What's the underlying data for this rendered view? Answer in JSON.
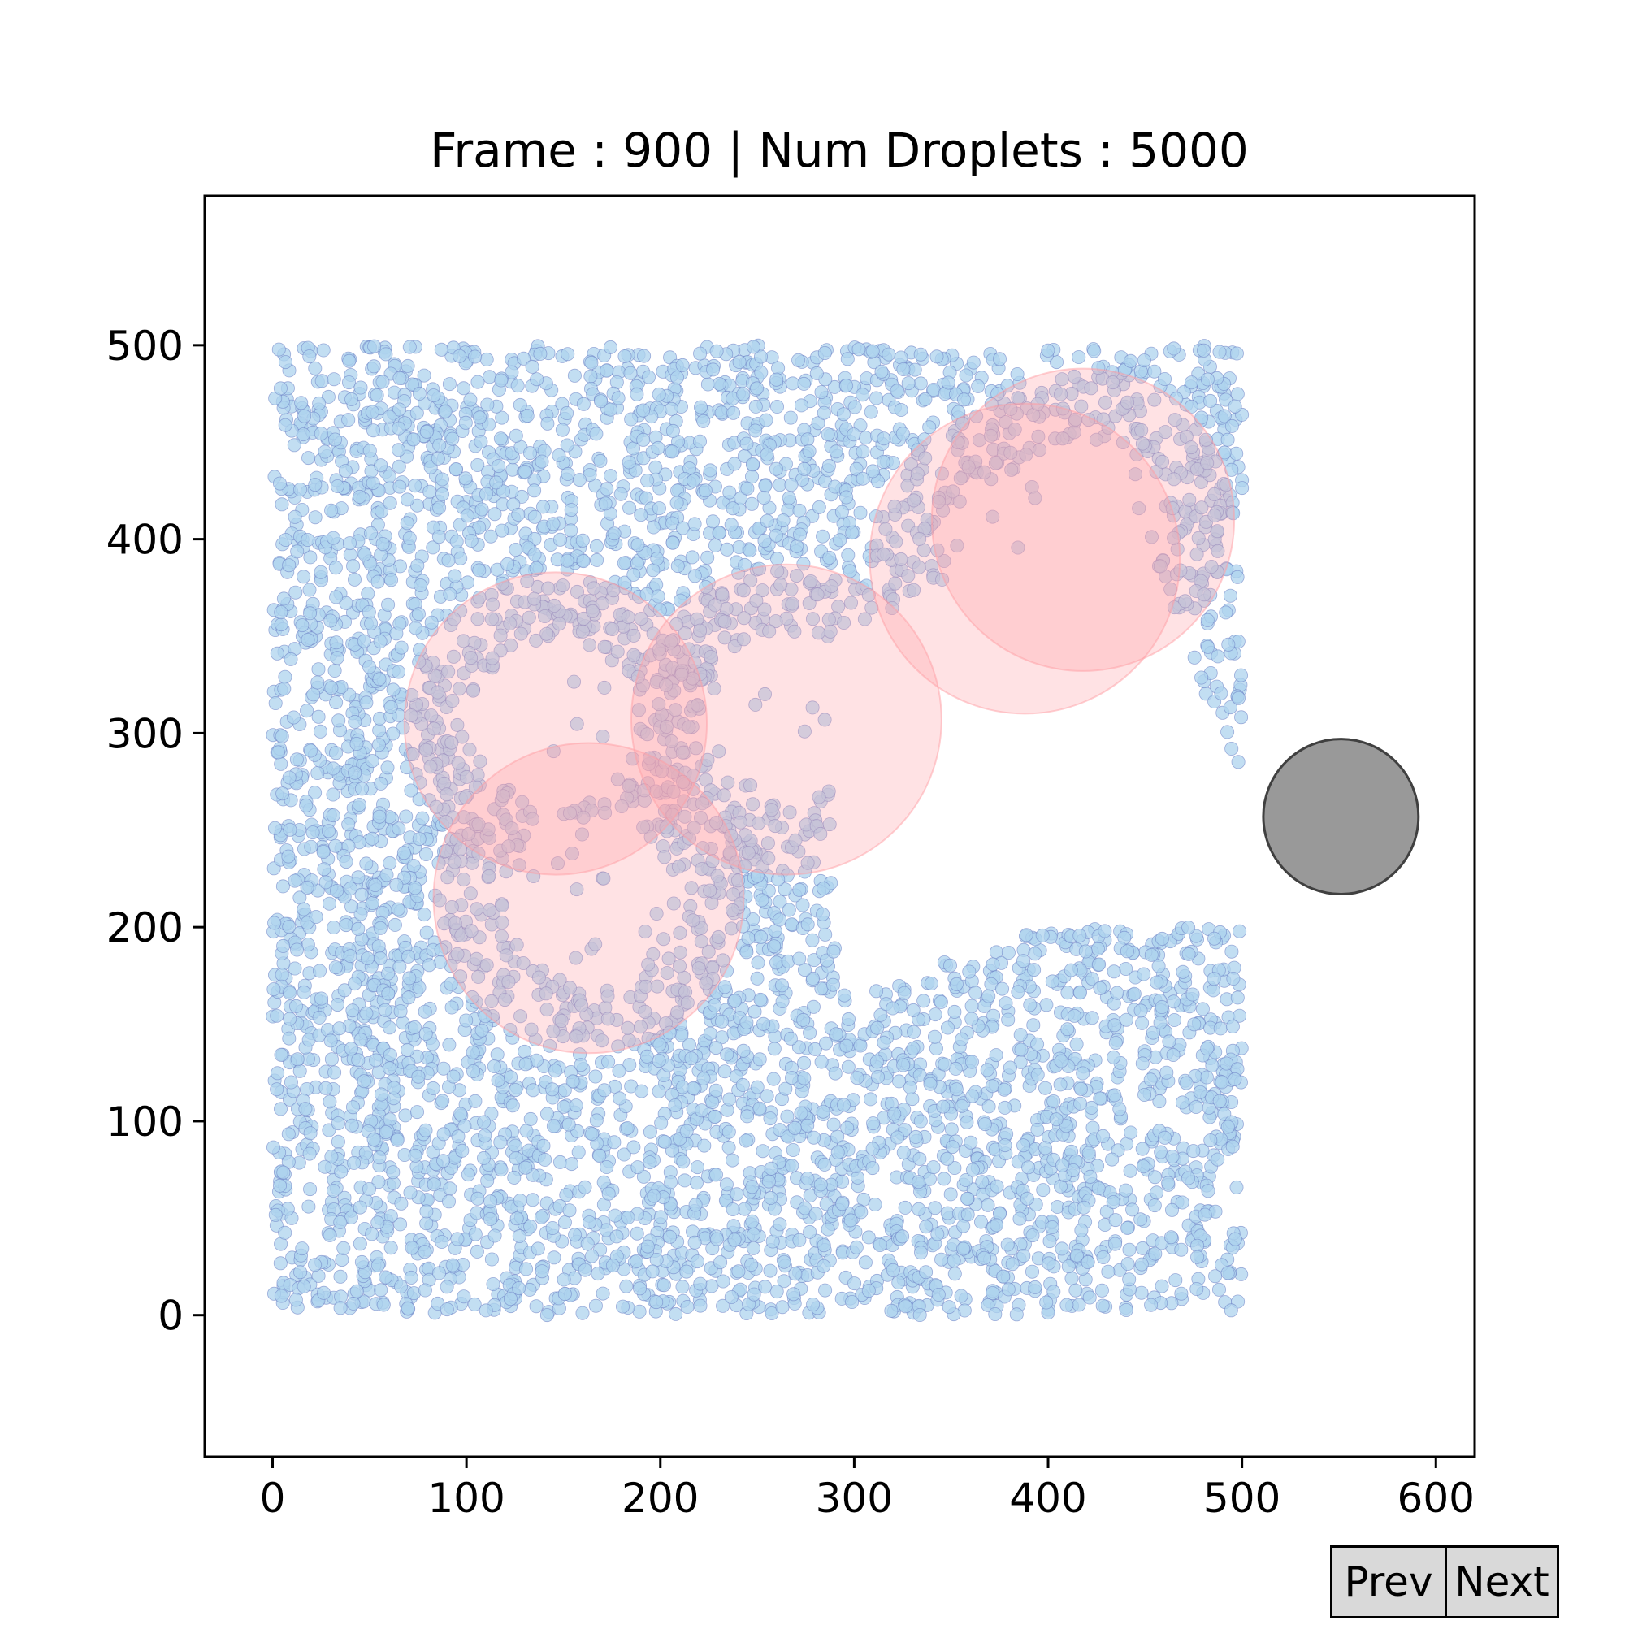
{
  "chart_data": {
    "type": "scatter",
    "title": "Frame : 900 | Num Droplets : 5000",
    "xlabel": "",
    "ylabel": "",
    "xlim": [
      -35,
      620
    ],
    "ylim": [
      -73,
      577
    ],
    "x_ticks": [
      0,
      100,
      200,
      300,
      400,
      500,
      600
    ],
    "y_ticks": [
      0,
      100,
      200,
      300,
      400,
      500
    ],
    "grid": false,
    "droplet_count": 5000,
    "droplet_field": {
      "x_range": [
        0,
        500
      ],
      "y_range": [
        0,
        500
      ],
      "droplet_radius": 3.4,
      "fill_color": "#aed3ee",
      "edge_color": "#6a7fc4",
      "density_note_color": "#9fb6dc"
    },
    "channel": {
      "y_upper_at_x": [
        [
          290,
          350
        ],
        [
          400,
          400
        ],
        [
          420,
          450
        ],
        [
          500,
          280
        ]
      ],
      "y_lower_at_x": [
        [
          250,
          150
        ],
        [
          400,
          200
        ],
        [
          500,
          200
        ]
      ]
    },
    "red_zones": {
      "fill_color": "#ff9ea4",
      "fill_opacity": 0.3,
      "circles": [
        {
          "x": 146,
          "y": 305,
          "r": 78
        },
        {
          "x": 163,
          "y": 215,
          "r": 80
        },
        {
          "x": 265,
          "y": 307,
          "r": 80
        },
        {
          "x": 388,
          "y": 390,
          "r": 80
        },
        {
          "x": 418,
          "y": 410,
          "r": 78
        }
      ]
    },
    "obstacle": {
      "x": 551,
      "y": 257,
      "r": 40,
      "color": "#808080"
    }
  },
  "buttons": {
    "prev_label": "Prev",
    "next_label": "Next"
  }
}
